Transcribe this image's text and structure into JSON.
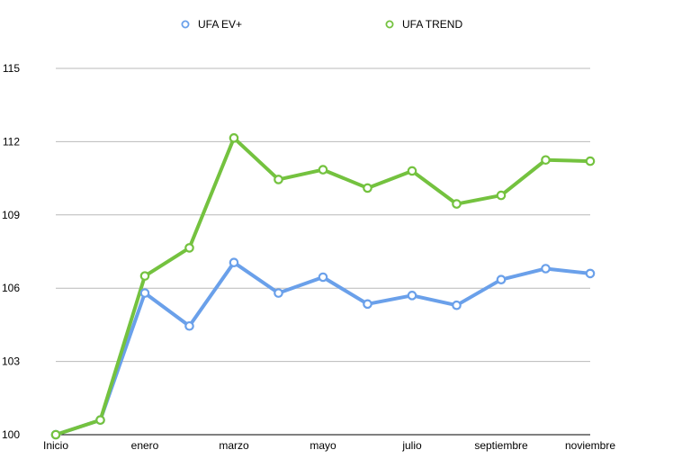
{
  "chart_data": {
    "type": "line",
    "title": "",
    "xlabel": "",
    "ylabel": "",
    "ylim": [
      100,
      115
    ],
    "yticks": [
      100,
      103,
      106,
      109,
      112,
      115
    ],
    "grid": true,
    "legend_position": "top",
    "categories": [
      "Inicio",
      "",
      "enero",
      "",
      "marzo",
      "",
      "mayo",
      "",
      "julio",
      "",
      "septiembre",
      "",
      "noviembre"
    ],
    "series": [
      {
        "name": "UFA EV+",
        "color": "#6aa0ea",
        "values": [
          100.0,
          100.6,
          105.8,
          104.45,
          107.05,
          105.8,
          106.45,
          105.35,
          105.7,
          105.3,
          106.35,
          106.8,
          106.6
        ]
      },
      {
        "name": "UFA TREND",
        "color": "#74c23f",
        "values": [
          100.0,
          100.6,
          106.5,
          107.65,
          112.15,
          110.45,
          110.85,
          110.1,
          110.8,
          109.45,
          109.8,
          111.25,
          111.2
        ]
      }
    ]
  }
}
